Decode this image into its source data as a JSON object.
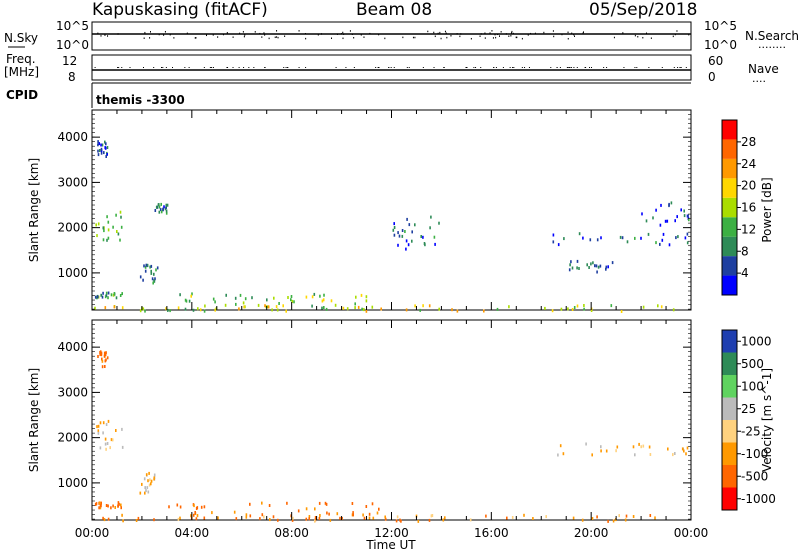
{
  "header": {
    "station": "Kapuskasing (fitACF)",
    "beam": "Beam 08",
    "date": "05/Sep/2018"
  },
  "panel_sky": {
    "left_label": "N.Sky",
    "right_label": "N.Search",
    "left_ticks": [
      "10^5",
      "10^0"
    ],
    "right_ticks": [
      "10^5",
      "10^0"
    ],
    "right_dots": "........"
  },
  "panel_freq": {
    "left_label_1": "Freq.",
    "left_label_2": "[MHz]",
    "left_ticks": [
      "12",
      "8"
    ],
    "right_label": "Nave",
    "right_ticks": [
      "60",
      "0"
    ],
    "right_dots": "...."
  },
  "panel_cpid": {
    "label": "CPID",
    "text": "themis -3300"
  },
  "chart_data": [
    {
      "type": "heatmap",
      "ylabel": "Slant Range [km]",
      "xlabel": "",
      "xlim": [
        "00:00",
        "24:00"
      ],
      "ylim": [
        180,
        4600
      ],
      "x_ticks": [
        "00:00",
        "04:00",
        "08:00",
        "12:00",
        "16:00",
        "20:00",
        "00:00"
      ],
      "y_ticks": [
        "1000",
        "2000",
        "3000",
        "4000"
      ],
      "colorbar": {
        "label": "Power [dB]",
        "ticks": [
          "4",
          "8",
          "12",
          "16",
          "20",
          "24",
          "28"
        ],
        "colors": [
          "#0000ff",
          "#1e3fa0",
          "#2e8b57",
          "#3cb043",
          "#aadd00",
          "#ffd700",
          "#ff9900",
          "#ff6600",
          "#ff0000"
        ]
      },
      "regions": [
        {
          "t0": 0.1,
          "t1": 1.2,
          "r0": 480,
          "r1": 600,
          "value": 12
        },
        {
          "t0": 0.1,
          "t1": 1.2,
          "r0": 1700,
          "r1": 2400,
          "value": 14
        },
        {
          "t0": 0.2,
          "t1": 0.6,
          "r0": 3600,
          "r1": 3950,
          "value": 8
        },
        {
          "t0": 1.9,
          "t1": 2.6,
          "r0": 800,
          "r1": 1250,
          "value": 10
        },
        {
          "t0": 2.5,
          "t1": 3.0,
          "r0": 2350,
          "r1": 2550,
          "value": 8
        },
        {
          "t0": 3.0,
          "t1": 11.5,
          "r0": 200,
          "r1": 600,
          "value": 16
        },
        {
          "t0": 12.0,
          "t1": 14.0,
          "r0": 1500,
          "r1": 2300,
          "value": 8
        },
        {
          "t0": 18.0,
          "t1": 24.0,
          "r0": 1650,
          "r1": 1900,
          "value": 8
        },
        {
          "t0": 19.0,
          "t1": 21.0,
          "r0": 1050,
          "r1": 1300,
          "value": 8
        },
        {
          "t0": 22.0,
          "t1": 24.0,
          "r0": 2050,
          "r1": 2600,
          "value": 8
        },
        {
          "t0": 0.0,
          "t1": 24.0,
          "r0": 180,
          "r1": 320,
          "value": 20
        }
      ]
    },
    {
      "type": "heatmap",
      "ylabel": "Slant Range [km]",
      "xlabel": "Time UT",
      "xlim": [
        "00:00",
        "24:00"
      ],
      "ylim": [
        180,
        4600
      ],
      "x_ticks": [
        "00:00",
        "04:00",
        "08:00",
        "12:00",
        "16:00",
        "20:00",
        "00:00"
      ],
      "y_ticks": [
        "1000",
        "2000",
        "3000",
        "4000"
      ],
      "colorbar": {
        "label": "Velocity [m s^-1]",
        "ticks": [
          "1000",
          "500",
          "100",
          "25",
          "-25",
          "-100",
          "-500",
          "-1000"
        ],
        "colors": [
          "#1f3fb0",
          "#2e8b57",
          "#5fd35f",
          "#bbbbbb",
          "#ffd27f",
          "#ff9900",
          "#ff6600",
          "#ff0000"
        ]
      },
      "regions": [
        {
          "t0": 0.1,
          "t1": 1.2,
          "r0": 480,
          "r1": 600,
          "value": -100
        },
        {
          "t0": 0.1,
          "t1": 1.2,
          "r0": 1700,
          "r1": 2400,
          "value": 0
        },
        {
          "t0": 0.2,
          "t1": 0.6,
          "r0": 3600,
          "r1": 3950,
          "value": -100
        },
        {
          "t0": 1.9,
          "t1": 2.6,
          "r0": 800,
          "r1": 1250,
          "value": 0
        },
        {
          "t0": 3.0,
          "t1": 11.5,
          "r0": 200,
          "r1": 600,
          "value": -80
        },
        {
          "t0": 18.0,
          "t1": 24.0,
          "r0": 1650,
          "r1": 1900,
          "value": 0
        },
        {
          "t0": 0.0,
          "t1": 24.0,
          "r0": 180,
          "r1": 320,
          "value": -50
        }
      ]
    }
  ]
}
